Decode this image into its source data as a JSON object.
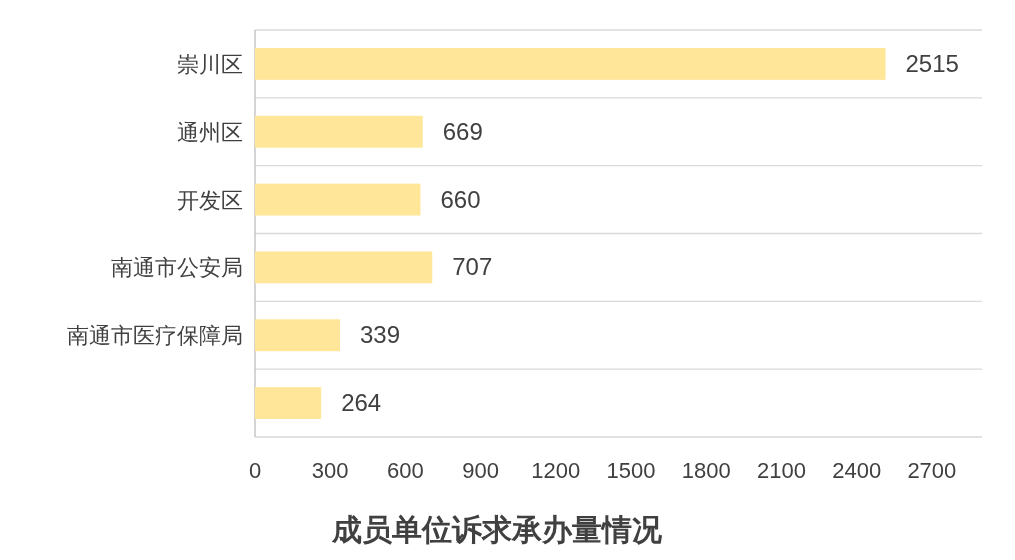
{
  "chart_data": {
    "type": "bar",
    "orientation": "horizontal",
    "title": "成员单位诉求承办量情况",
    "categories": [
      "崇川区",
      "通州区",
      "开发区",
      "南通市公安局",
      "南通市医疗保障局",
      null
    ],
    "values": [
      2515,
      669,
      660,
      707,
      339,
      264
    ],
    "color": "#ffe699",
    "xlim": [
      0,
      2900
    ],
    "xticks": [
      0,
      300,
      600,
      900,
      1200,
      1500,
      1800,
      2100,
      2400,
      2700
    ],
    "grid": "y",
    "data_labels": true
  }
}
